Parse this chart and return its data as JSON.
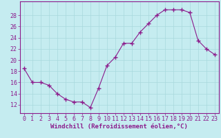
{
  "x": [
    0,
    1,
    2,
    3,
    4,
    5,
    6,
    7,
    8,
    9,
    10,
    11,
    12,
    13,
    14,
    15,
    16,
    17,
    18,
    19,
    20,
    21,
    22,
    23
  ],
  "y": [
    18.5,
    16,
    16,
    15.5,
    14,
    13,
    12.5,
    12.5,
    11.5,
    15,
    19,
    20.5,
    23,
    23,
    25,
    26.5,
    28,
    29,
    29,
    29,
    28.5,
    23.5,
    22,
    21
  ],
  "line_color": "#8B1A8B",
  "marker": "+",
  "marker_size": 4,
  "marker_color": "#8B1A8B",
  "bg_color": "#C5ECF0",
  "grid_color": "#A8D8DC",
  "axis_color": "#8B1A8B",
  "tick_label_color": "#8B1A8B",
  "xlabel": "Windchill (Refroidissement éolien,°C)",
  "xlabel_color": "#8B1A8B",
  "xlabel_fontsize": 6.5,
  "tick_fontsize": 6,
  "ylim": [
    10.5,
    30.5
  ],
  "yticks": [
    12,
    14,
    16,
    18,
    20,
    22,
    24,
    26,
    28
  ],
  "xlim": [
    -0.5,
    23.5
  ],
  "xticks": [
    0,
    1,
    2,
    3,
    4,
    5,
    6,
    7,
    8,
    9,
    10,
    11,
    12,
    13,
    14,
    15,
    16,
    17,
    18,
    19,
    20,
    21,
    22,
    23
  ]
}
